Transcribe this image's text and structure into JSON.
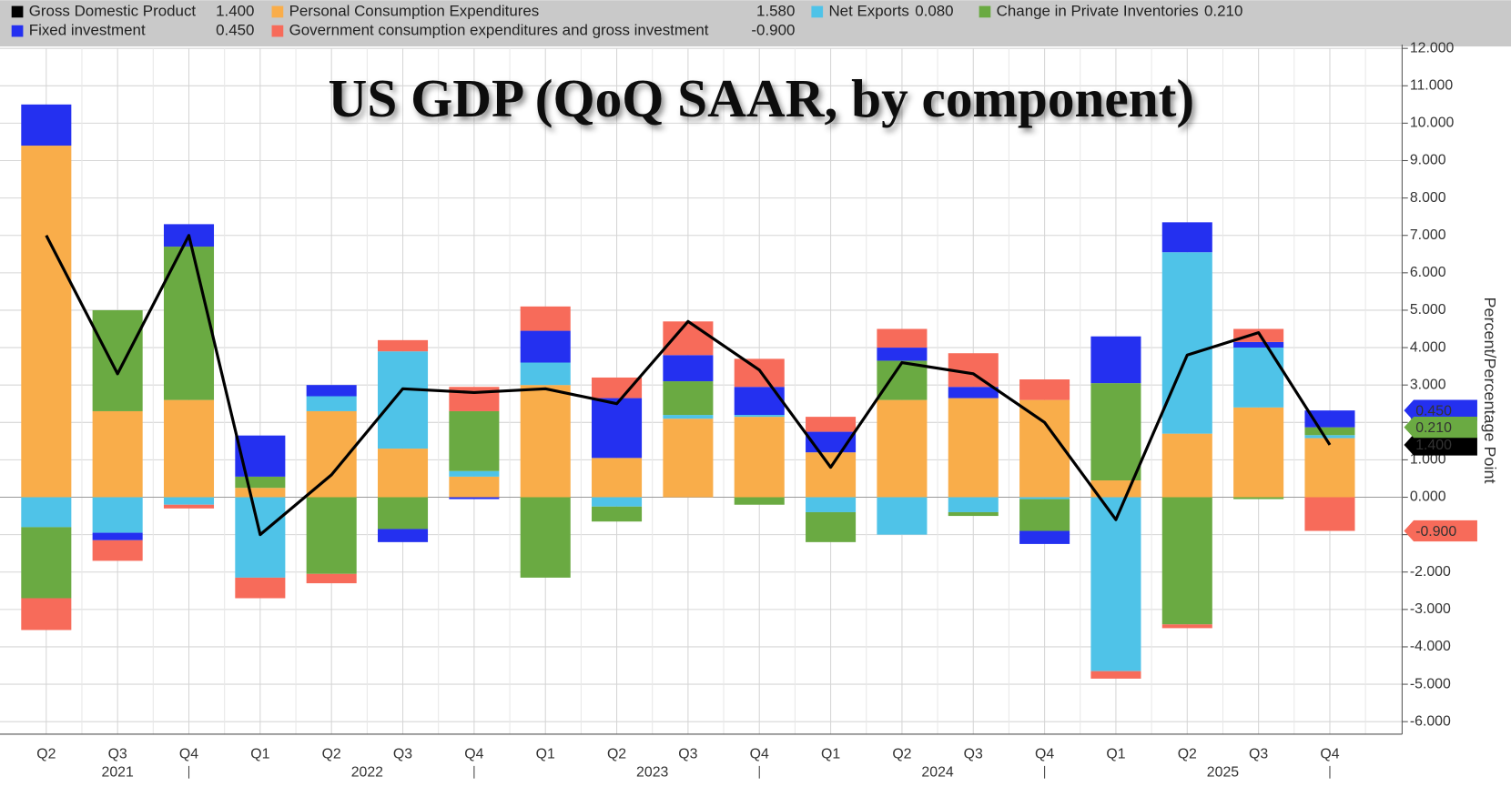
{
  "chart_data": {
    "type": "stacked_bar_line",
    "title": "US GDP (QoQ SAAR, by component)",
    "y_axis_label": "Percent/Percentage Point",
    "categories": [
      "Q2",
      "Q3",
      "Q4",
      "Q1",
      "Q2",
      "Q3",
      "Q4",
      "Q1",
      "Q2",
      "Q3",
      "Q4",
      "Q1",
      "Q2",
      "Q3",
      "Q4",
      "Q1",
      "Q2",
      "Q3",
      "Q4"
    ],
    "years": [
      "2021",
      "2022",
      "2023",
      "2024",
      "2025"
    ],
    "series": [
      {
        "name": "Gross Domestic Product",
        "type": "line",
        "color": "#000000",
        "legend_value": "1.400",
        "last_label": "1.400",
        "values": [
          7.0,
          3.3,
          7.0,
          -1.0,
          0.6,
          2.9,
          2.8,
          2.9,
          2.5,
          4.7,
          3.4,
          0.8,
          3.6,
          3.3,
          2.0,
          -0.6,
          3.8,
          4.4,
          1.4
        ]
      },
      {
        "name": "Personal Consumption Expenditures",
        "type": "bar",
        "color": "#f9ad4a",
        "legend_value": "1.580",
        "values": [
          9.4,
          2.3,
          2.6,
          0.25,
          2.3,
          1.3,
          0.55,
          3.0,
          1.05,
          2.1,
          2.15,
          1.2,
          2.6,
          2.65,
          2.6,
          0.45,
          1.7,
          2.4,
          1.58
        ]
      },
      {
        "name": "Fixed investment",
        "type": "bar",
        "color": "#2430f0",
        "legend_value": "0.450",
        "last_label": "0.450",
        "values": [
          1.1,
          -0.2,
          0.6,
          1.1,
          0.3,
          -0.35,
          -0.05,
          0.85,
          1.6,
          0.7,
          0.75,
          0.55,
          0.35,
          0.3,
          -0.35,
          1.25,
          0.8,
          0.15,
          0.45
        ]
      },
      {
        "name": "Net Exports",
        "type": "bar",
        "color": "#4fc3e8",
        "legend_value": "0.080",
        "values": [
          -0.8,
          -0.95,
          -0.2,
          -2.15,
          0.4,
          2.6,
          0.15,
          0.6,
          -0.25,
          0.1,
          0.05,
          -0.4,
          -1.0,
          -0.4,
          -0.05,
          -4.65,
          4.85,
          1.6,
          0.08
        ]
      },
      {
        "name": "Change in Private Inventories",
        "type": "bar",
        "color": "#6aaa42",
        "legend_value": "0.210",
        "last_label": "0.210",
        "values": [
          -1.9,
          2.7,
          4.1,
          0.3,
          -2.05,
          -0.85,
          1.6,
          -2.15,
          -0.4,
          0.9,
          -0.2,
          -0.8,
          1.05,
          -0.1,
          -0.85,
          2.6,
          -3.4,
          -0.05,
          0.21
        ]
      },
      {
        "name": "Government consumption expenditures and gross investment",
        "type": "bar",
        "color": "#f76b5a",
        "legend_value": "-0.900",
        "last_label": "-0.900",
        "values": [
          -0.85,
          -0.55,
          -0.1,
          -0.55,
          -0.25,
          0.3,
          0.65,
          0.65,
          0.55,
          0.9,
          0.75,
          0.4,
          0.5,
          0.9,
          0.55,
          -0.2,
          -0.1,
          0.35,
          -0.9
        ]
      }
    ],
    "ylim": [
      -6.5,
      12.2
    ],
    "yticks": [
      {
        "value": 12,
        "label": "12.000"
      },
      {
        "value": 11,
        "label": "11.000"
      },
      {
        "value": 10,
        "label": "10.000"
      },
      {
        "value": 9,
        "label": "9.000"
      },
      {
        "value": 8,
        "label": "8.000"
      },
      {
        "value": 7,
        "label": "7.000"
      },
      {
        "value": 6,
        "label": "6.000"
      },
      {
        "value": 5,
        "label": "5.000"
      },
      {
        "value": 4,
        "label": "4.000"
      },
      {
        "value": 3,
        "label": "3.000"
      },
      {
        "value": 2,
        "label": "2.000"
      },
      {
        "value": 1,
        "label": "1.000"
      },
      {
        "value": 0,
        "label": "0.000"
      },
      {
        "value": -1,
        "label": "-1.000"
      },
      {
        "value": -2,
        "label": "-2.000"
      },
      {
        "value": -3,
        "label": "-3.000"
      },
      {
        "value": -4,
        "label": "-4.000"
      },
      {
        "value": -5,
        "label": "-5.000"
      },
      {
        "value": -6,
        "label": "-6.000"
      }
    ],
    "grid": true
  }
}
